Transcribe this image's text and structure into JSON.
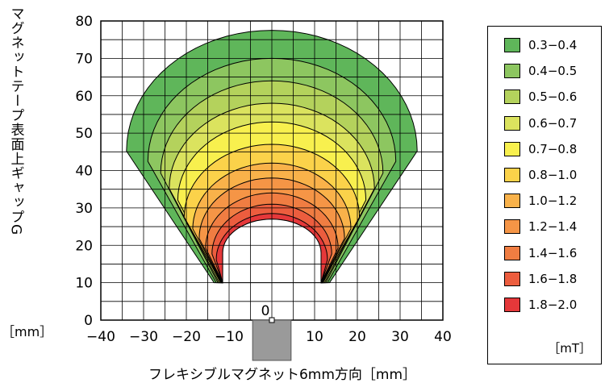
{
  "chart_data": {
    "type": "heatmap",
    "xlabel": "フレキシブルマグネット6mm方向［mm］",
    "ylabel": "マグネットテープ表面上ギャップG",
    "yunit": "［mm］",
    "xlim": [
      -40,
      40
    ],
    "ylim": [
      0,
      80
    ],
    "xticks": [
      "−40",
      "−30",
      "−20",
      "−10",
      "",
      "10",
      "20",
      "30",
      "40"
    ],
    "xtick_values": [
      -40,
      -30,
      -20,
      -10,
      0,
      10,
      20,
      30,
      40
    ],
    "yticks": [
      "0",
      "10",
      "20",
      "30",
      "40",
      "50",
      "60",
      "70",
      "80"
    ],
    "ytick_values": [
      0,
      10,
      20,
      30,
      40,
      50,
      60,
      70,
      80
    ],
    "grid": true,
    "grid_step": [
      5,
      5
    ],
    "magnet_label": "0",
    "legend_unit": "［mT］",
    "legend": [
      {
        "label": "0.3−0.4",
        "color": "#5fb65a"
      },
      {
        "label": "0.4−0.5",
        "color": "#8dc660"
      },
      {
        "label": "0.5−0.6",
        "color": "#b4d25c"
      },
      {
        "label": "0.6−0.7",
        "color": "#dbe35e"
      },
      {
        "label": "0.7−0.8",
        "color": "#f8f04e"
      },
      {
        "label": "0.8−1.0",
        "color": "#fbd24a"
      },
      {
        "label": "1.0−1.2",
        "color": "#f9b24a"
      },
      {
        "label": "1.2−1.4",
        "color": "#f59546"
      },
      {
        "label": "1.4−1.6",
        "color": "#f07d42"
      },
      {
        "label": "1.6−1.8",
        "color": "#ec5d3e"
      },
      {
        "label": "1.8−2.0",
        "color": "#e5383a"
      }
    ],
    "contours": [
      {
        "label": "0.3−0.4",
        "outer_half_width": 34,
        "peak": 77.5,
        "base_inner": 13.5,
        "inner_half_width": 11.5
      },
      {
        "label": "0.4−0.5",
        "outer_half_width": 29,
        "peak": 70,
        "base_inner": 13.0,
        "inner_half_width": 11.5
      },
      {
        "label": "0.5−0.6",
        "outer_half_width": 26,
        "peak": 64,
        "base_inner": 12.6,
        "inner_half_width": 11.5
      },
      {
        "label": "0.6−0.7",
        "outer_half_width": 24,
        "peak": 58,
        "base_inner": 12.3,
        "inner_half_width": 11.5
      },
      {
        "label": "0.7−0.8",
        "outer_half_width": 22,
        "peak": 53,
        "base_inner": 12.0,
        "inner_half_width": 11.5
      },
      {
        "label": "0.8−1.0",
        "outer_half_width": 20.5,
        "peak": 47,
        "base_inner": 11.8,
        "inner_half_width": 11.5
      },
      {
        "label": "1.0−1.2",
        "outer_half_width": 18.5,
        "peak": 42,
        "base_inner": 11.7,
        "inner_half_width": 11.5
      },
      {
        "label": "1.2−1.4",
        "outer_half_width": 17,
        "peak": 38,
        "base_inner": 11.6,
        "inner_half_width": 11.5
      },
      {
        "label": "1.4−1.6",
        "outer_half_width": 15.5,
        "peak": 34,
        "base_inner": 11.5,
        "inner_half_width": 11.5
      },
      {
        "label": "1.6−1.8",
        "outer_half_width": 14,
        "peak": 31,
        "base_inner": 11.5,
        "inner_half_width": 11.5
      },
      {
        "label": "1.8−2.0",
        "outer_half_width": 13,
        "peak": 28.5,
        "base_inner": 11.5,
        "inner_half_width": 11.5
      }
    ]
  }
}
